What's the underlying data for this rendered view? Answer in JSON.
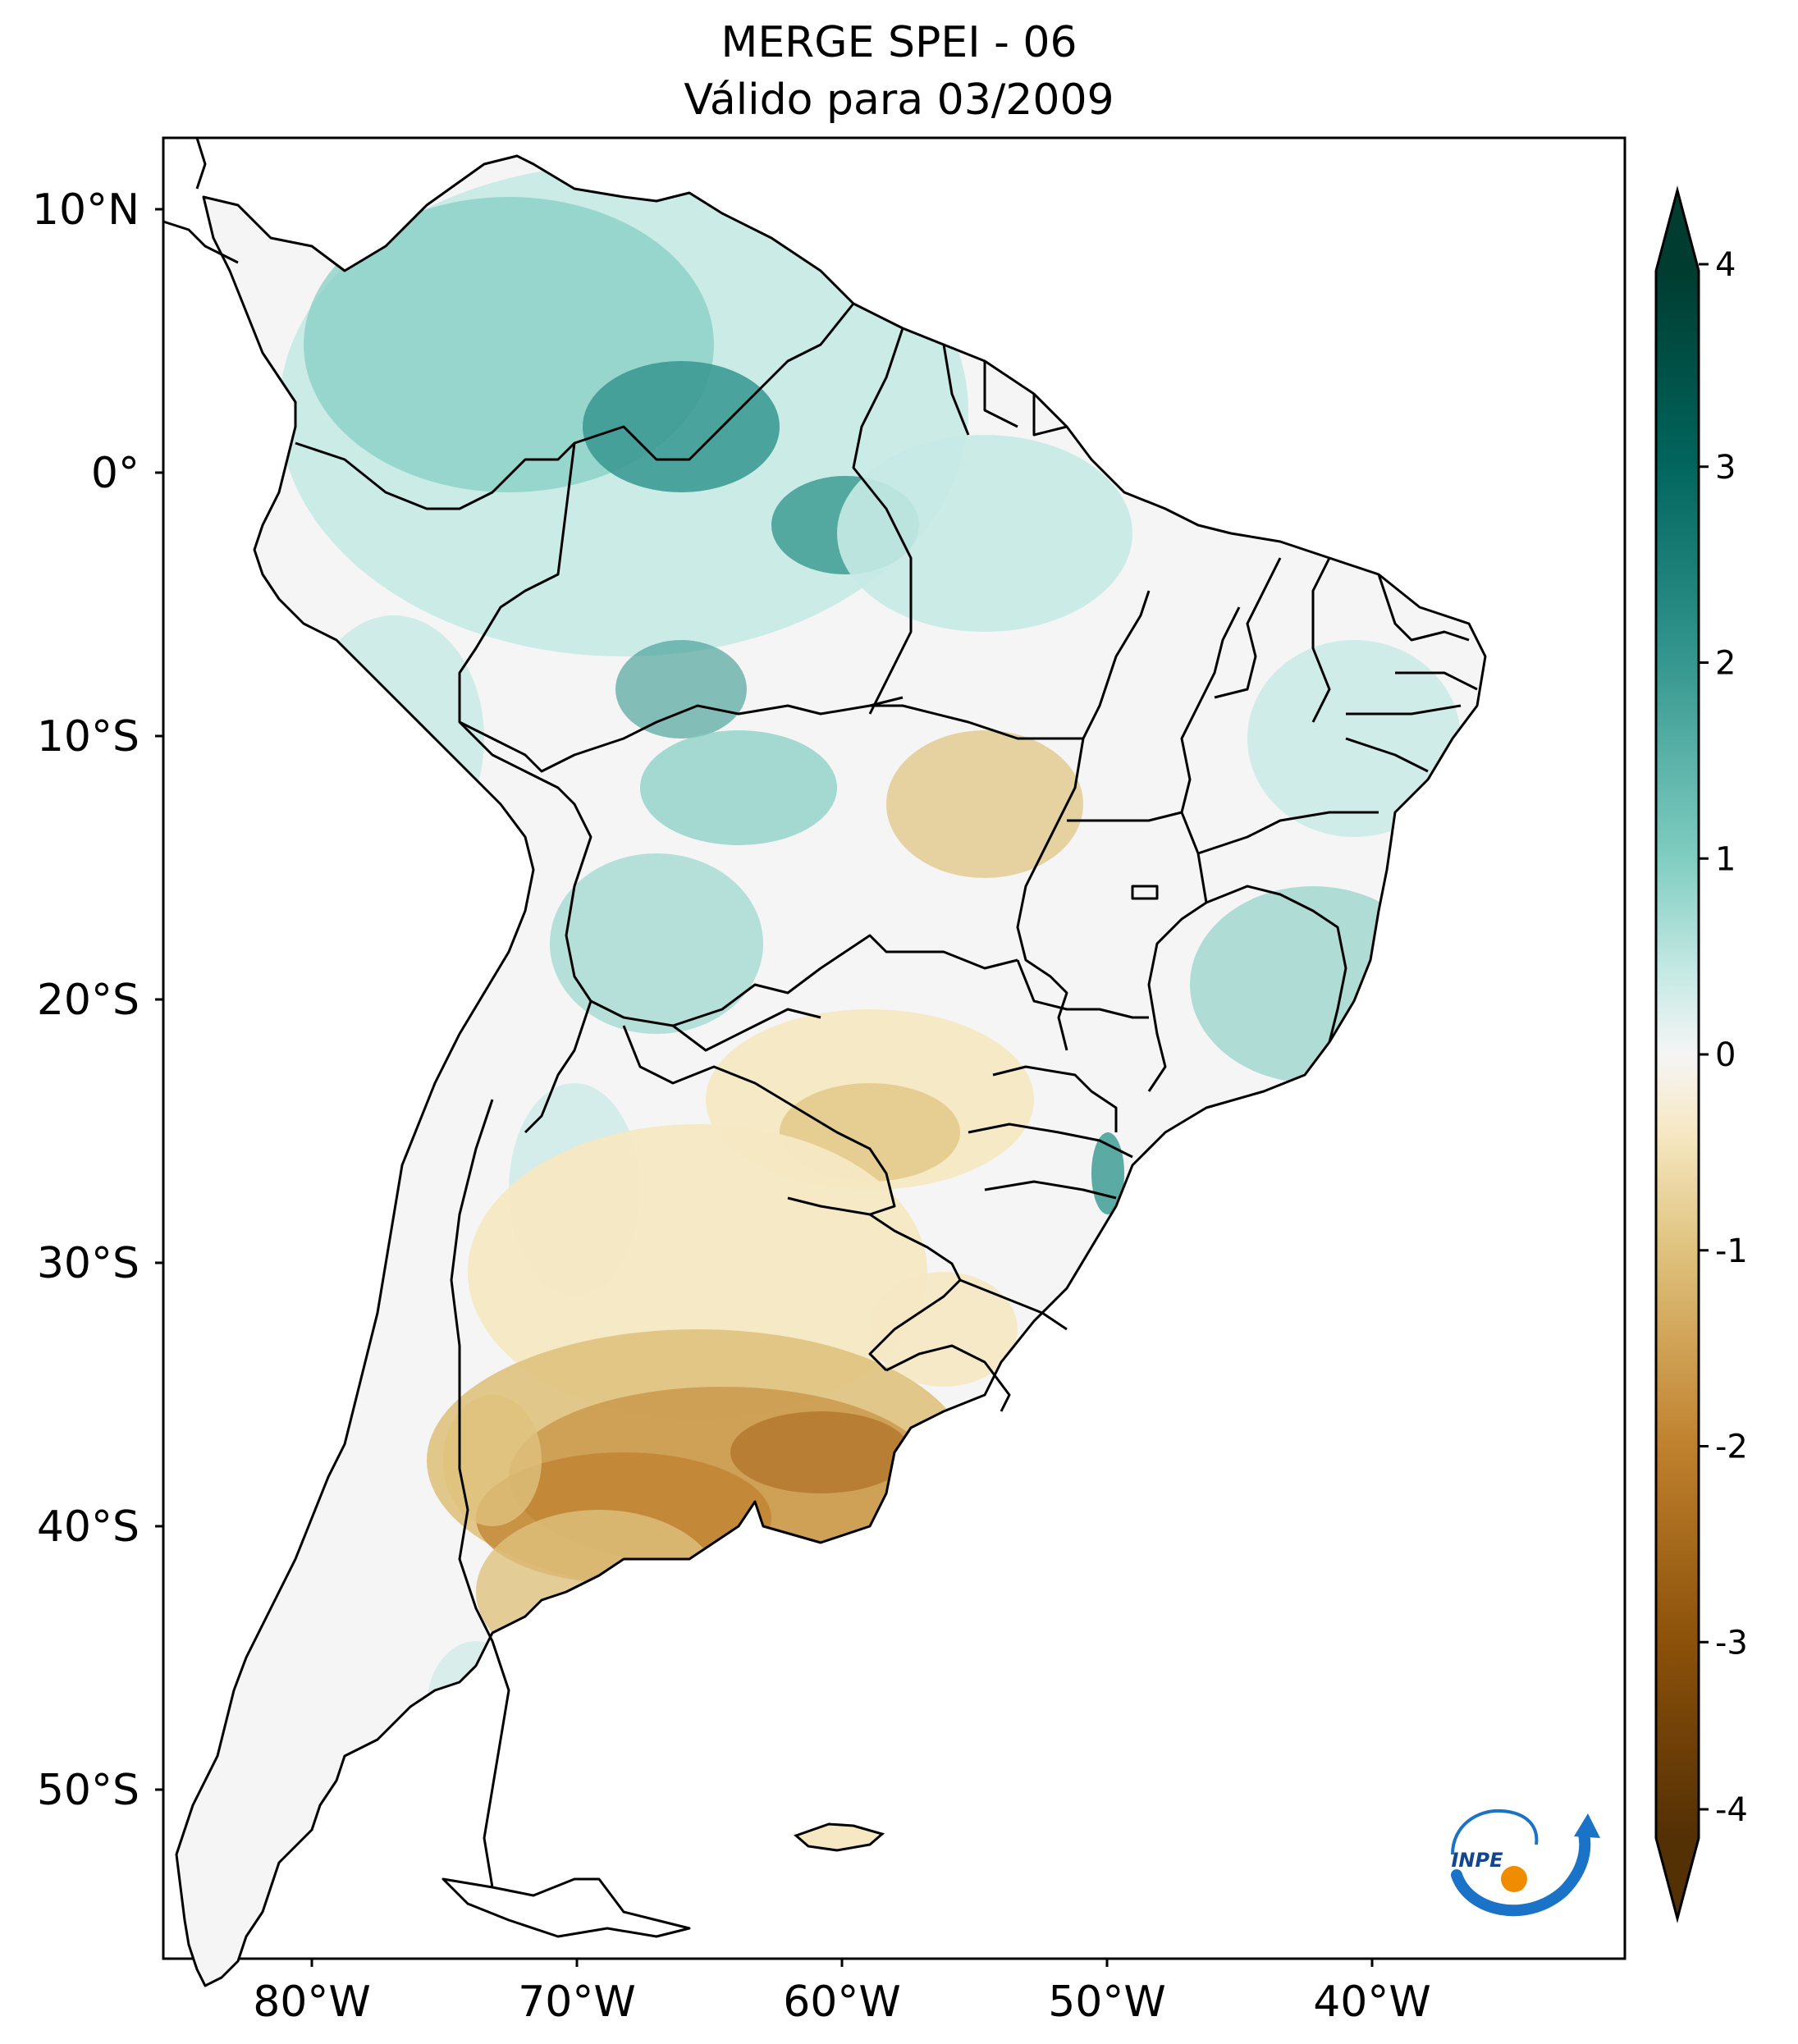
{
  "title": {
    "line1": "MERGE   SPEI - 06",
    "line2": "Válido para 03/2009"
  },
  "map": {
    "lat_ticks": [
      "10°N",
      "0°",
      "10°S",
      "20°S",
      "30°S",
      "40°S",
      "50°S"
    ],
    "lon_ticks": [
      "80°W",
      "70°W",
      "60°W",
      "50°W",
      "40°W"
    ],
    "extent_lon": [
      -85,
      -30
    ],
    "extent_lat": [
      -56,
      13
    ]
  },
  "colorbar": {
    "colormap": "BrBG",
    "vmin": -4,
    "vmax": 4,
    "ticks": [
      "4",
      "3",
      "2",
      "1",
      "0",
      "-1",
      "-2",
      "-3",
      "-4"
    ],
    "colors": {
      "neg4": "#543005",
      "neg3": "#8c510a",
      "neg2": "#bf812d",
      "neg1": "#dfc27d",
      "neg05": "#f6e8c3",
      "zero": "#f5f5f5",
      "pos05": "#c7eae5",
      "pos1": "#80cdc1",
      "pos2": "#35978f",
      "pos3": "#01665e",
      "pos4": "#003c30"
    }
  },
  "logo": {
    "text": "INPE"
  }
}
